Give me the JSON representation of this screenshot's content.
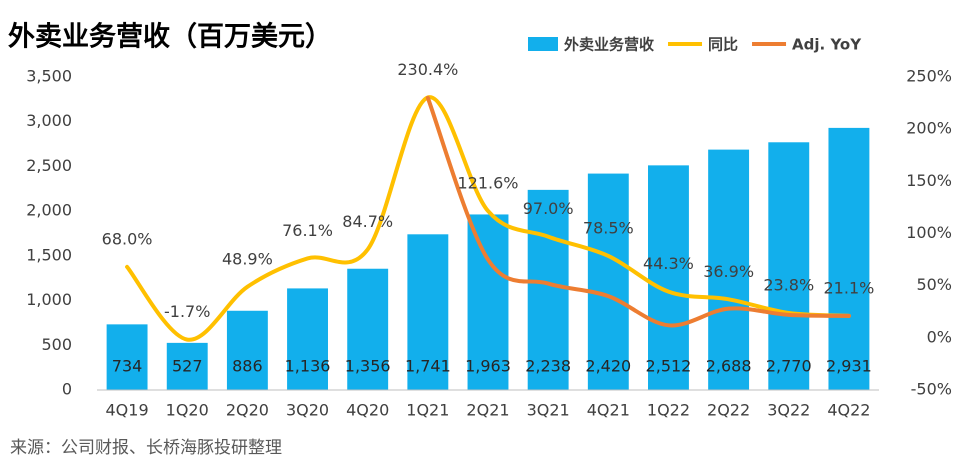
{
  "chart_data": {
    "type": "combo",
    "title": "外卖业务营收（百万美元）",
    "source": "来源：公司财报、长桥海豚投研整理",
    "categories": [
      "4Q19",
      "1Q20",
      "2Q20",
      "3Q20",
      "4Q20",
      "1Q21",
      "2Q21",
      "3Q21",
      "4Q21",
      "1Q22",
      "2Q22",
      "3Q22",
      "4Q22"
    ],
    "series": [
      {
        "name": "外卖业务营收",
        "type": "bar",
        "color": "#12afec",
        "values": [
          734,
          527,
          886,
          1136,
          1356,
          1741,
          1963,
          2238,
          2420,
          2512,
          2688,
          2770,
          2931
        ],
        "value_labels": [
          "734",
          "527",
          "886",
          "1,136",
          "1,356",
          "1,741",
          "1,963",
          "2,238",
          "2,420",
          "2,512",
          "2,688",
          "2,770",
          "2,931"
        ]
      },
      {
        "name": "同比",
        "type": "line",
        "axis": "y2",
        "color": "#ffc000",
        "values": [
          68.0,
          -1.7,
          48.9,
          76.1,
          84.7,
          230.4,
          121.6,
          97.0,
          78.5,
          44.3,
          36.9,
          23.8,
          21.1
        ],
        "value_labels": [
          "68.0%",
          "-1.7%",
          "48.9%",
          "76.1%",
          "84.7%",
          "230.4%",
          "121.6%",
          "97.0%",
          "78.5%",
          "44.3%",
          "36.9%",
          "23.8%",
          "21.1%"
        ]
      },
      {
        "name": "Adj. YoY",
        "type": "line",
        "axis": "y2",
        "color": "#ed7d31",
        "values": [
          null,
          null,
          null,
          null,
          null,
          230,
          75,
          52,
          40,
          12,
          28,
          22,
          21
        ]
      }
    ],
    "ylim": [
      0,
      3500
    ],
    "yticks": [
      0,
      500,
      {
        "value": 1000,
        "label": "1,000"
      },
      {
        "value": 1500,
        "label": "1,500"
      },
      {
        "value": 2000,
        "label": "2,000"
      },
      {
        "value": 2500,
        "label": "2,500"
      },
      {
        "value": 3000,
        "label": "3,000"
      },
      {
        "value": 3500,
        "label": "3,500"
      }
    ],
    "y2lim": [
      -50,
      250
    ],
    "y2ticks": [
      {
        "value": -50,
        "label": "-50%"
      },
      {
        "value": 0,
        "label": "0%"
      },
      {
        "value": 50,
        "label": "50%"
      },
      {
        "value": 100,
        "label": "100%"
      },
      {
        "value": 150,
        "label": "150%"
      },
      {
        "value": 200,
        "label": "200%"
      },
      {
        "value": 250,
        "label": "250%"
      }
    ],
    "grid": false,
    "legend": "top-right"
  }
}
